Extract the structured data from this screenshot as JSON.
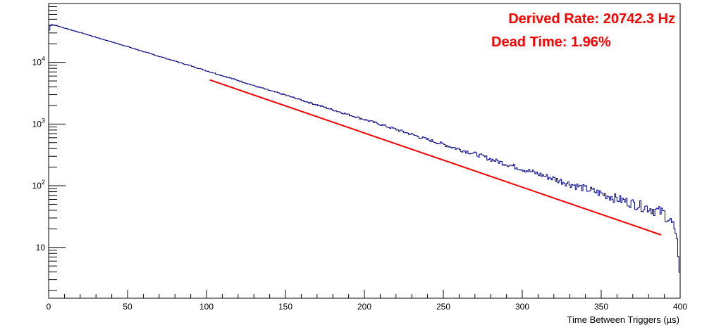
{
  "chart_data": {
    "type": "line",
    "title": "",
    "xlabel": "Time Between Triggers (µs)",
    "ylabel": "",
    "xlim": [
      0,
      400
    ],
    "ylim": [
      1.5,
      90000
    ],
    "yscale": "log",
    "grid": false,
    "x_ticks": [
      0,
      50,
      100,
      150,
      200,
      250,
      300,
      350,
      400
    ],
    "x_tick_labels": [
      "0",
      "50",
      "100",
      "150",
      "200",
      "250",
      "300",
      "350",
      "400"
    ],
    "y_ticks": [
      10,
      100,
      1000,
      10000
    ],
    "y_tick_labels": [
      {
        "base": "10",
        "exp": ""
      },
      {
        "base": "10",
        "exp": "2"
      },
      {
        "base": "10",
        "exp": "3"
      },
      {
        "base": "10",
        "exp": "4"
      }
    ],
    "series": [
      {
        "color": "#000080",
        "x": [
          0,
          1,
          2,
          3,
          4,
          5,
          10,
          20,
          30,
          40,
          50,
          60,
          70,
          80,
          90,
          100,
          110,
          120,
          130,
          140,
          150,
          160,
          170,
          180,
          190,
          200,
          210,
          220,
          230,
          240,
          250,
          260,
          270,
          280,
          290,
          300,
          310,
          320,
          330,
          340,
          350,
          360,
          370,
          380,
          390,
          396,
          398,
          399,
          400
        ],
        "y": [
          30000,
          39000,
          41000,
          40500,
          40000,
          39500,
          36000,
          30500,
          25500,
          21500,
          18000,
          15000,
          12500,
          10500,
          8800,
          7300,
          6100,
          5100,
          4200,
          3500,
          2950,
          2450,
          2050,
          1700,
          1420,
          1190,
          990,
          820,
          680,
          560,
          470,
          390,
          330,
          270,
          225,
          188,
          156,
          130,
          108,
          90,
          75,
          62,
          52,
          44,
          36,
          22,
          14,
          6,
          3
        ]
      },
      {
        "color": "#ff0000",
        "x": [
          102,
          400
        ],
        "y": [
          5200,
          12.5
        ]
      }
    ],
    "annotations": [
      {
        "text": "Derived Rate: 20742.3 Hz",
        "color": "#ff0000"
      },
      {
        "text": "Dead Time: 1.96%",
        "color": "#ff0000"
      }
    ]
  }
}
